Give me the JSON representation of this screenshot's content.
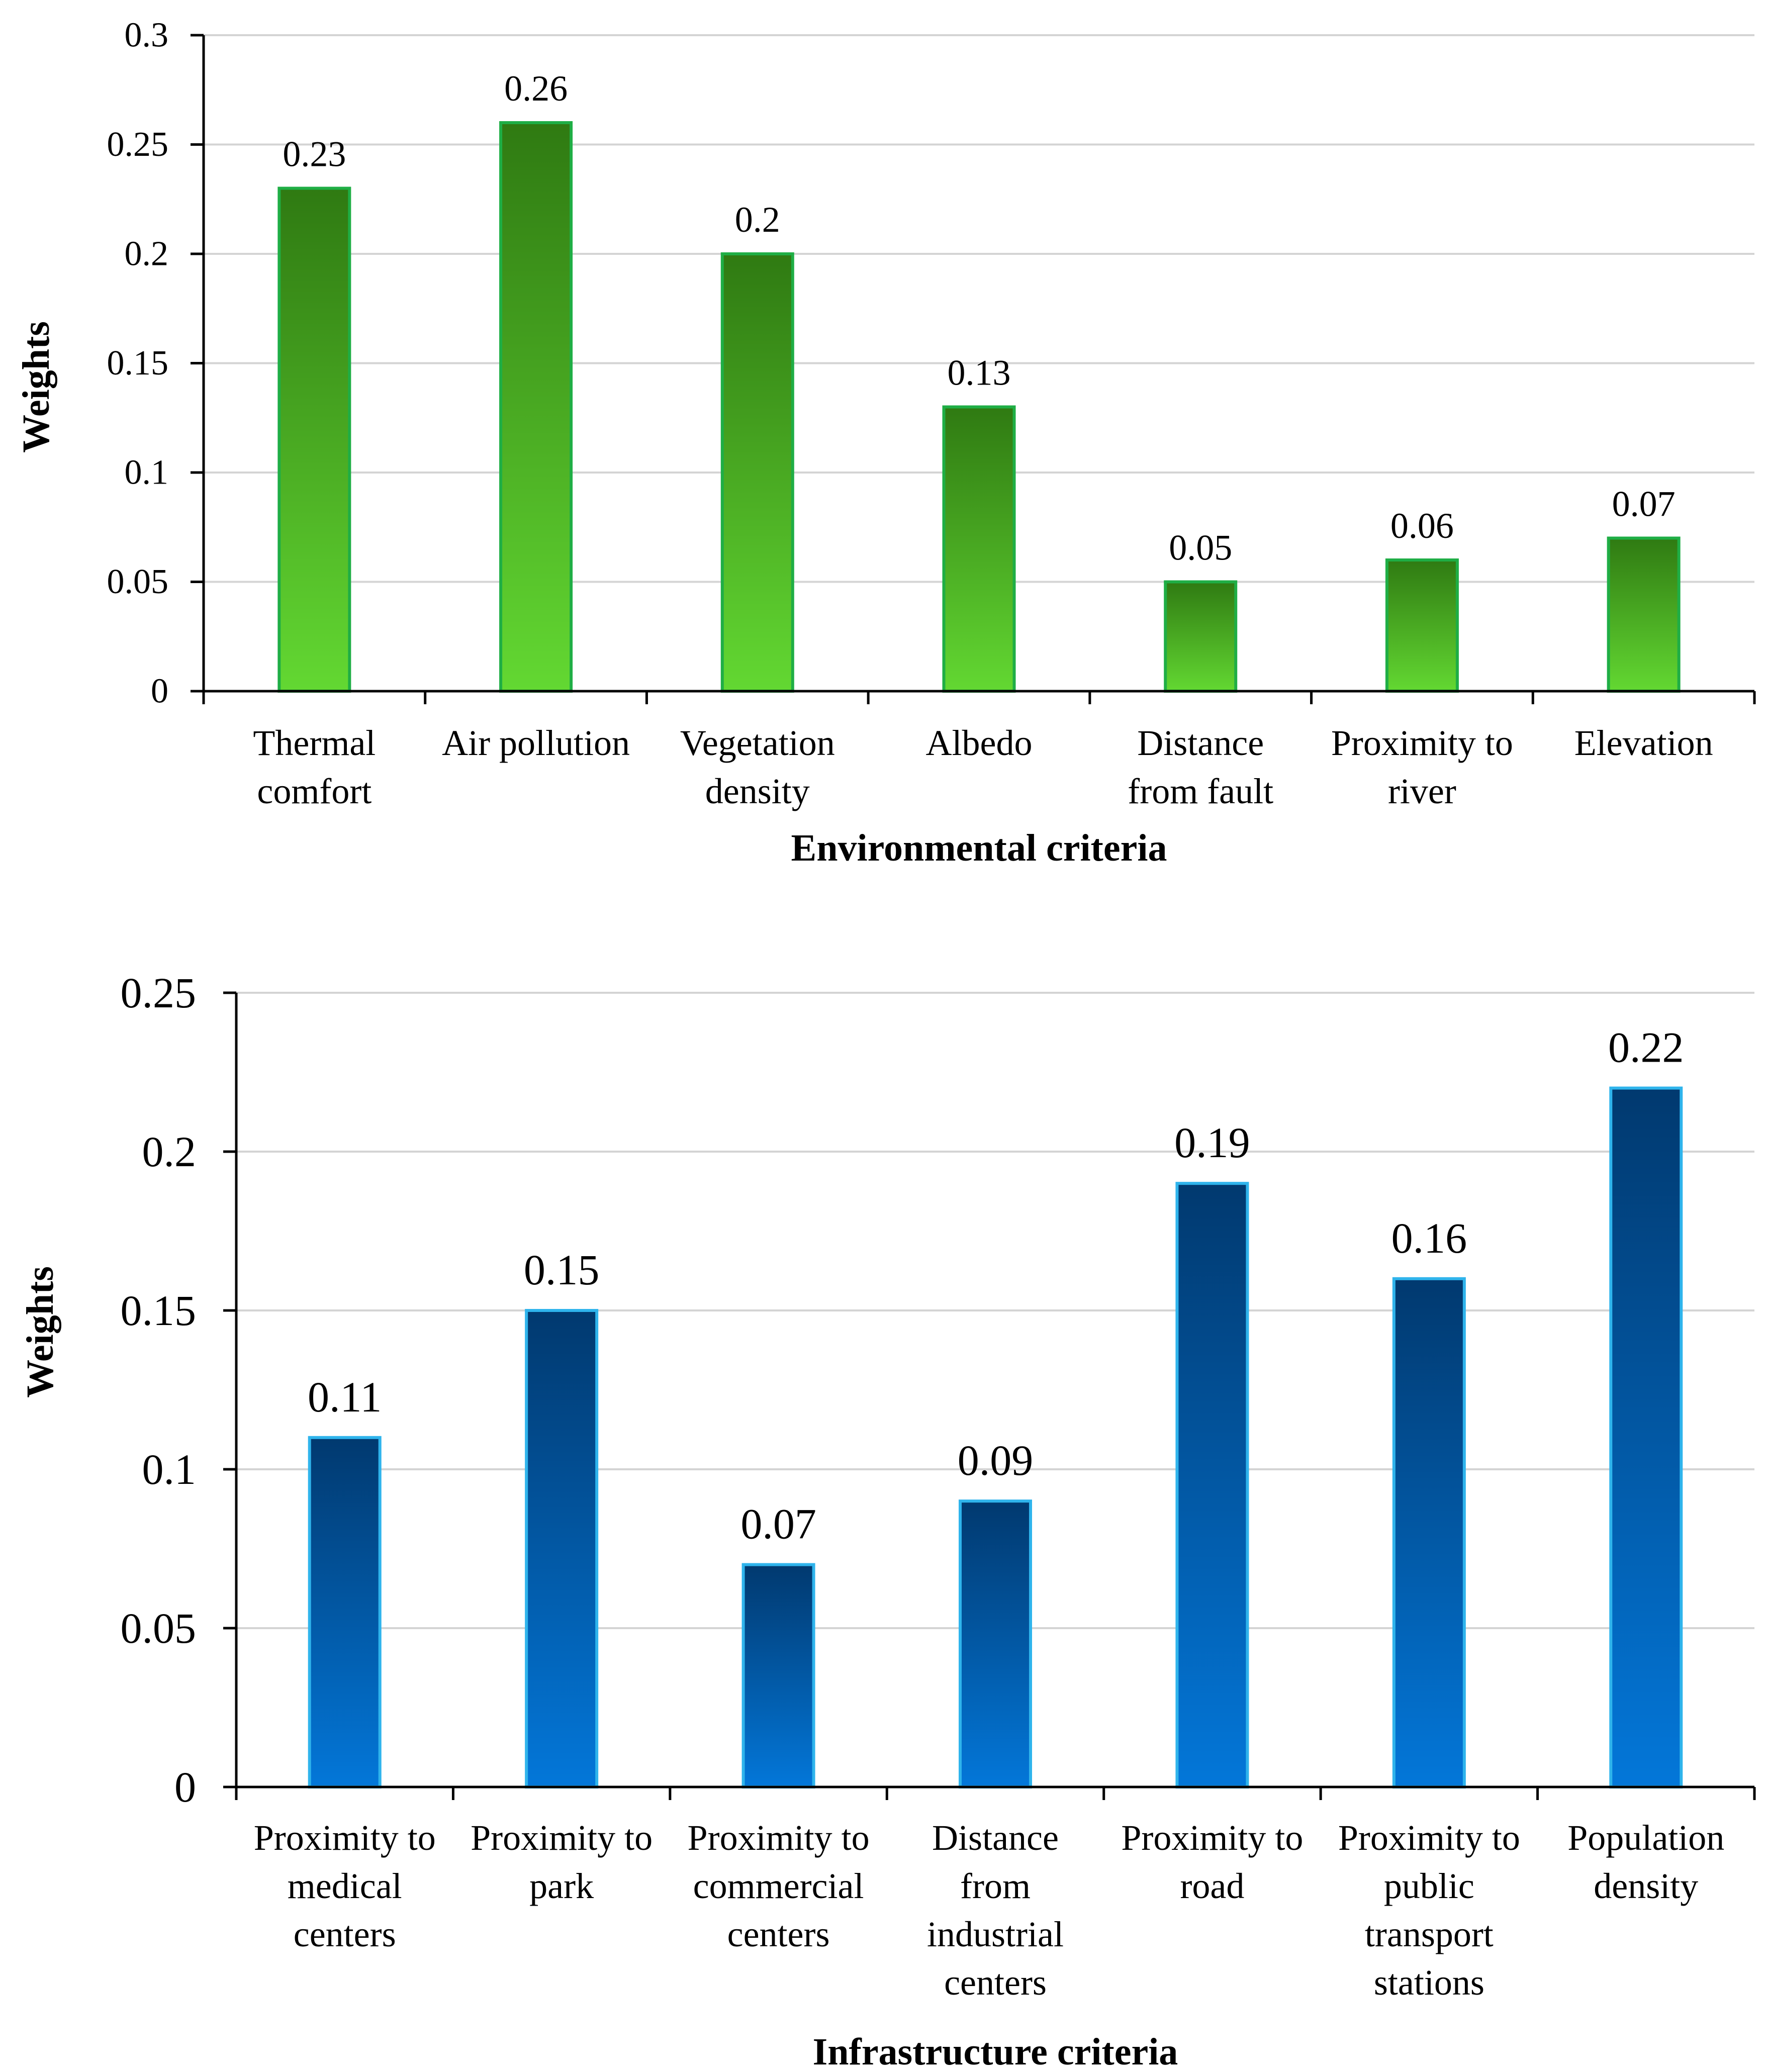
{
  "colors": {
    "green_top": "#2f7a12",
    "green_bottom": "#63d832",
    "green_edge": "#1fae45",
    "blue_top": "#01396f",
    "blue_bottom": "#0377d9",
    "blue_edge": "#2fb4ec",
    "grid": "#d4d4d4",
    "axis": "#000000"
  },
  "chart_data": [
    {
      "type": "bar",
      "title": "",
      "xlabel": "Environmental criteria",
      "ylabel": "Weights",
      "ylim": [
        0,
        0.3
      ],
      "yticks": [
        "0",
        "0.05",
        "0.1",
        "0.15",
        "0.2",
        "0.25",
        "0.3"
      ],
      "grid": true,
      "categories": [
        [
          "Thermal",
          "comfort"
        ],
        [
          "Air pollution"
        ],
        [
          "Vegetation",
          "density"
        ],
        [
          "Albedo"
        ],
        [
          "Distance",
          "from fault"
        ],
        [
          "Proximity to",
          "river"
        ],
        [
          "Elevation"
        ]
      ],
      "values": [
        0.23,
        0.26,
        0.2,
        0.13,
        0.05,
        0.06,
        0.07
      ],
      "data_labels": [
        "0.23",
        "0.26",
        "0.2",
        "0.13",
        "0.05",
        "0.06",
        "0.07"
      ]
    },
    {
      "type": "bar",
      "title": "",
      "xlabel": "Infrastructure criteria",
      "ylabel": "Weights",
      "ylim": [
        0,
        0.25
      ],
      "yticks": [
        "0",
        "0.05",
        "0.1",
        "0.15",
        "0.2",
        "0.25"
      ],
      "grid": true,
      "categories": [
        [
          "Proximity to",
          "medical",
          "centers"
        ],
        [
          "Proximity to",
          "park"
        ],
        [
          "Proximity to",
          "commercial",
          "centers"
        ],
        [
          "Distance",
          "from",
          "industrial",
          "centers"
        ],
        [
          "Proximity to",
          "road"
        ],
        [
          "Proximity to",
          "public",
          "transport",
          "stations"
        ],
        [
          "Population",
          "density"
        ]
      ],
      "values": [
        0.11,
        0.15,
        0.07,
        0.09,
        0.19,
        0.16,
        0.22
      ],
      "data_labels": [
        "0.11",
        "0.15",
        "0.07",
        "0.09",
        "0.19",
        "0.16",
        "0.22"
      ]
    }
  ]
}
